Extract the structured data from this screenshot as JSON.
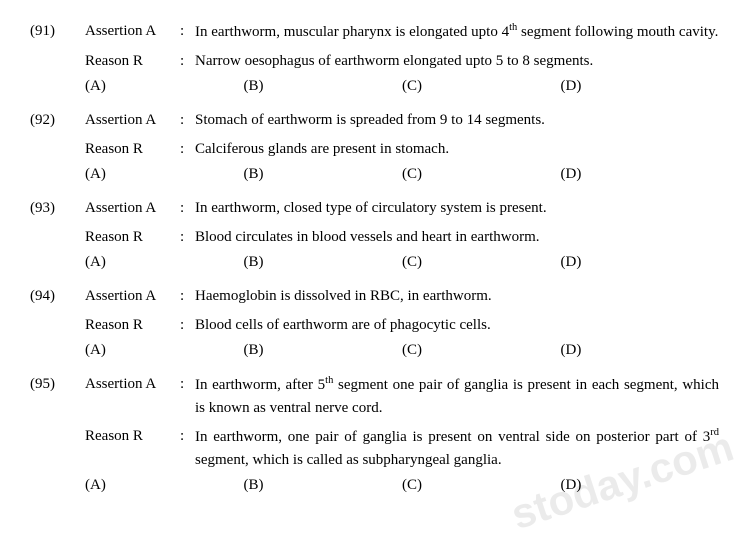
{
  "watermark": "stoday.com",
  "labels": {
    "assertion": "Assertion A",
    "reason": "Reason R",
    "colon": ":"
  },
  "options": [
    "(A)",
    "(B)",
    "(C)",
    "(D)"
  ],
  "questions": [
    {
      "num": "(91)",
      "assertion": "In earthworm, muscular pharynx is elongated upto 4<sup>th</sup> segment following mouth cavity.",
      "reason": "Narrow oesophagus of earthworm elongated upto 5 to 8 segments."
    },
    {
      "num": "(92)",
      "assertion": "Stomach of earthworm is spreaded from 9 to 14 segments.",
      "reason": "Calciferous glands are present in stomach."
    },
    {
      "num": "(93)",
      "assertion": "In earthworm, closed type of circulatory system is present.",
      "reason": "Blood circulates in blood vessels and heart in earthworm."
    },
    {
      "num": "(94)",
      "assertion": "Haemoglobin is dissolved in RBC, in earthworm.",
      "reason": "Blood cells of earthworm are of phagocytic cells."
    },
    {
      "num": "(95)",
      "assertion": "In earthworm, after 5<sup>th</sup> segment one pair of ganglia is present in each segment, which is known as ventral nerve cord.",
      "reason": "In earthworm, one pair of ganglia is present on ventral side on posterior part of 3<sup>rd</sup> segment, which is called as subpharyngeal ganglia."
    }
  ]
}
